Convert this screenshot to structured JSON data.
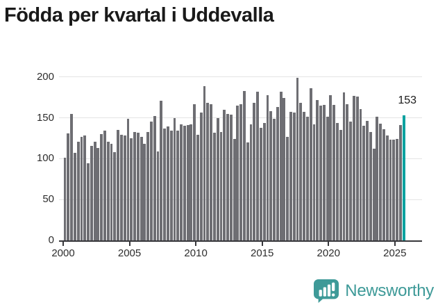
{
  "title": "Födda per kvartal i Uddevalla",
  "footer": {
    "brand": "Newsworthy",
    "logo_color": "#3e9a98"
  },
  "colors": {
    "bar": "#6e6e73",
    "highlight": "#0aa2a0",
    "gridline": "#e4e4e4",
    "axis": "#37373b",
    "text": "#2d2d2d",
    "title_text": "#1a1a1a"
  },
  "chart_data": {
    "type": "bar",
    "title": "Födda per kvartal i Uddevalla",
    "xlabel": "",
    "ylabel": "",
    "x_start_period": "2000 Q1",
    "x_end_period": "2025 Q3",
    "frequency": "quarterly",
    "x_tick_labels": [
      "2000",
      "2005",
      "2010",
      "2015",
      "2020",
      "2025"
    ],
    "y_ticks": [
      0,
      50,
      100,
      150,
      200
    ],
    "ylim": [
      0,
      200
    ],
    "grid": true,
    "legend": false,
    "bar_color": "#6e6e73",
    "highlight_color": "#0aa2a0",
    "highlight_last_bar": true,
    "annotation_label": "153",
    "annotation_value": 153,
    "values": [
      101,
      131,
      155,
      107,
      121,
      127,
      128,
      94,
      116,
      121,
      113,
      130,
      134,
      121,
      118,
      108,
      135,
      129,
      128,
      149,
      125,
      133,
      132,
      127,
      118,
      133,
      145,
      152,
      109,
      171,
      137,
      139,
      134,
      150,
      134,
      142,
      140,
      141,
      142,
      167,
      129,
      156,
      189,
      168,
      167,
      132,
      150,
      133,
      160,
      155,
      154,
      124,
      165,
      167,
      183,
      120,
      142,
      168,
      182,
      138,
      144,
      178,
      158,
      149,
      163,
      182,
      174,
      127,
      157,
      156,
      199,
      168,
      157,
      151,
      186,
      142,
      172,
      165,
      166,
      151,
      178,
      166,
      144,
      135,
      181,
      167,
      145,
      177,
      176,
      161,
      140,
      146,
      133,
      112,
      151,
      143,
      136,
      128,
      123,
      123,
      124,
      141,
      153
    ]
  }
}
